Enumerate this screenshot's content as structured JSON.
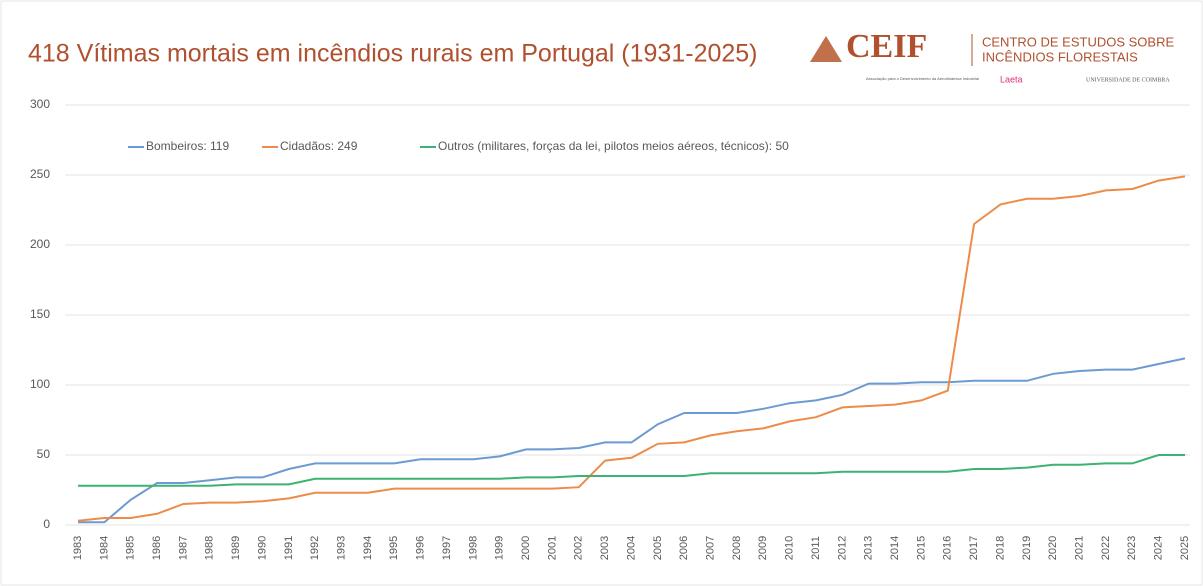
{
  "chart_data": {
    "type": "line",
    "title": "418 Vítimas mortais em incêndios rurais em Portugal (1931-2025)",
    "logo": {
      "name": "CEIF",
      "line1": "CENTRO DE ESTUDOS SOBRE",
      "line2": "INCÊNDIOS FLORESTAIS",
      "partner1": "Associação para o Desenvolvimento da Aerodinâmica Industrial",
      "partner2": "Laeta",
      "partner3": "UNIVERSIDADE DE COIMBRA"
    },
    "categories": [
      "1983",
      "1984",
      "1985",
      "1986",
      "1987",
      "1988",
      "1989",
      "1990",
      "1991",
      "1992",
      "1993",
      "1994",
      "1995",
      "1996",
      "1997",
      "1998",
      "1999",
      "2000",
      "2001",
      "2002",
      "2003",
      "2004",
      "2005",
      "2006",
      "2007",
      "2008",
      "2009",
      "2010",
      "2011",
      "2012",
      "2013",
      "2014",
      "2015",
      "2016",
      "2017",
      "2018",
      "2019",
      "2020",
      "2021",
      "2022",
      "2023",
      "2024",
      "2025"
    ],
    "series": [
      {
        "name": "Bombeiros: 119",
        "color": "#6b9bd2",
        "values": [
          2,
          2,
          18,
          30,
          30,
          32,
          34,
          34,
          40,
          44,
          44,
          44,
          44,
          47,
          47,
          47,
          49,
          54,
          54,
          55,
          59,
          59,
          72,
          80,
          80,
          80,
          83,
          87,
          89,
          93,
          101,
          101,
          102,
          102,
          103,
          103,
          103,
          108,
          110,
          111,
          111,
          115,
          119
        ]
      },
      {
        "name": "Cidadãos: 249",
        "color": "#ed8c4a",
        "values": [
          3,
          5,
          5,
          8,
          15,
          16,
          16,
          17,
          19,
          23,
          23,
          23,
          26,
          26,
          26,
          26,
          26,
          26,
          26,
          27,
          46,
          48,
          58,
          59,
          64,
          67,
          69,
          74,
          77,
          84,
          85,
          86,
          89,
          96,
          215,
          229,
          233,
          233,
          235,
          239,
          240,
          246,
          249
        ]
      },
      {
        "name": "Outros (militares, forças da lei, pilotos meios aéreos, técnicos): 50",
        "color": "#3cb371",
        "values": [
          28,
          28,
          28,
          28,
          28,
          28,
          29,
          29,
          29,
          33,
          33,
          33,
          33,
          33,
          33,
          33,
          33,
          34,
          34,
          35,
          35,
          35,
          35,
          35,
          37,
          37,
          37,
          37,
          37,
          38,
          38,
          38,
          38,
          38,
          40,
          40,
          41,
          43,
          43,
          44,
          44,
          50,
          50
        ]
      }
    ],
    "ylim": [
      0,
      300
    ],
    "yticks": [
      0,
      50,
      100,
      150,
      200,
      250,
      300
    ],
    "grid": true
  }
}
